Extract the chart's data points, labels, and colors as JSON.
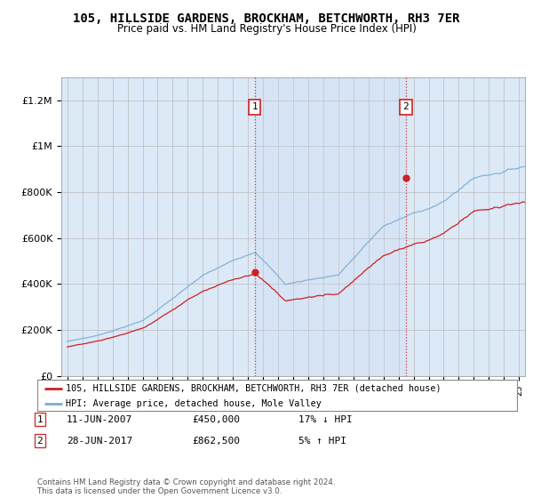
{
  "title": "105, HILLSIDE GARDENS, BROCKHAM, BETCHWORTH, RH3 7ER",
  "subtitle": "Price paid vs. HM Land Registry's House Price Index (HPI)",
  "ylabel_ticks": [
    "£0",
    "£200K",
    "£400K",
    "£600K",
    "£800K",
    "£1M",
    "£1.2M"
  ],
  "ytick_values": [
    0,
    200000,
    400000,
    600000,
    800000,
    1000000,
    1200000
  ],
  "ylim": [
    0,
    1300000
  ],
  "xlim_start": 1994.6,
  "xlim_end": 2025.4,
  "background_color": "#ffffff",
  "plot_bg_color": "#dce9f7",
  "grid_color": "#bbbbbb",
  "hpi_color": "#7aadd4",
  "price_color": "#cc2222",
  "marker1_x": 2007.44,
  "marker1_y": 450000,
  "marker2_x": 2017.49,
  "marker2_y": 862500,
  "legend_label1": "105, HILLSIDE GARDENS, BROCKHAM, BETCHWORTH, RH3 7ER (detached house)",
  "legend_label2": "HPI: Average price, detached house, Mole Valley",
  "annotation1_label": "1",
  "annotation1_date": "11-JUN-2007",
  "annotation1_price": "£450,000",
  "annotation1_hpi": "17% ↓ HPI",
  "annotation2_label": "2",
  "annotation2_date": "28-JUN-2017",
  "annotation2_price": "£862,500",
  "annotation2_hpi": "5% ↑ HPI",
  "footnote": "Contains HM Land Registry data © Crown copyright and database right 2024.\nThis data is licensed under the Open Government Licence v3.0."
}
